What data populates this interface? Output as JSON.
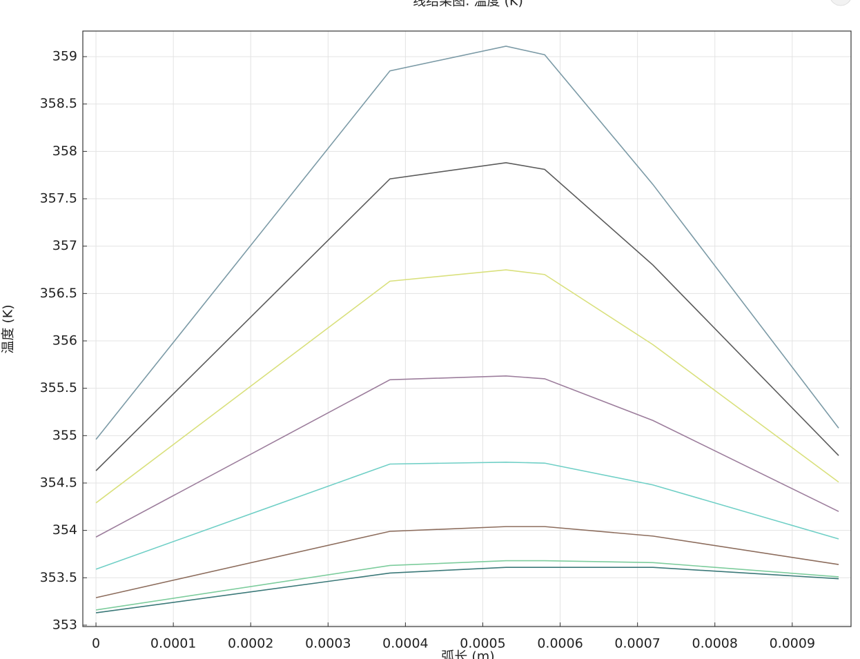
{
  "chart_data": {
    "type": "line",
    "title": "线结果图: 温度 (K)",
    "x_label": "弧长 (m)",
    "y_label": "温度 (K)",
    "x": [
      0,
      0.00038,
      0.00053,
      0.00058,
      0.00072,
      0.00096
    ],
    "series": [
      {
        "color": "#7b9aa6",
        "values": [
          354.96,
          358.85,
          359.11,
          359.02,
          357.65,
          355.08
        ]
      },
      {
        "color": "#5a5a5a",
        "values": [
          354.63,
          357.71,
          357.88,
          357.81,
          356.8,
          354.79
        ]
      },
      {
        "color": "#d9e07c",
        "values": [
          354.29,
          356.63,
          356.75,
          356.7,
          355.96,
          354.51
        ]
      },
      {
        "color": "#9c7d9c",
        "values": [
          353.93,
          355.59,
          355.63,
          355.6,
          355.16,
          354.2
        ]
      },
      {
        "color": "#6fcfc6",
        "values": [
          353.59,
          354.7,
          354.72,
          354.71,
          354.48,
          353.91
        ]
      },
      {
        "color": "#8c6c5c",
        "values": [
          353.29,
          353.99,
          354.04,
          354.04,
          353.94,
          353.64
        ]
      },
      {
        "color": "#7ccc9c",
        "values": [
          353.16,
          353.63,
          353.68,
          353.68,
          353.66,
          353.51
        ]
      },
      {
        "color": "#3a7878",
        "values": [
          353.13,
          353.55,
          353.61,
          353.61,
          353.61,
          353.49
        ]
      }
    ],
    "xlim": [
      -1.7e-05,
      0.000976
    ],
    "xticks": [
      0,
      0.0001,
      0.0002,
      0.0003,
      0.0004,
      0.0005,
      0.0006,
      0.0007,
      0.0008,
      0.0009
    ],
    "ylim": [
      352.985,
      359.27
    ],
    "yticks": [
      353,
      353.5,
      354,
      354.5,
      355,
      355.5,
      356,
      356.5,
      357,
      357.5,
      358,
      358.5,
      359
    ],
    "grid": true
  }
}
